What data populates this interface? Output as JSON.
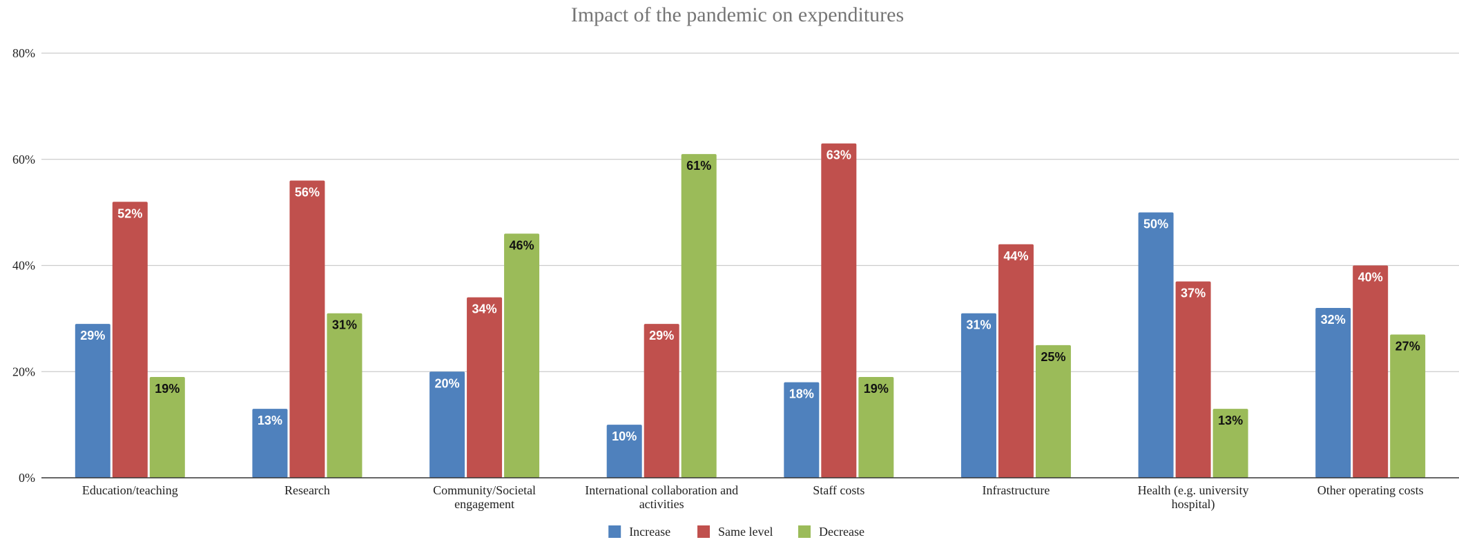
{
  "chart_data": {
    "type": "bar",
    "title": "Impact of the pandemic on expenditures",
    "xlabel": "",
    "ylabel": "",
    "ylim": [
      0,
      80
    ],
    "yticks": [
      0,
      20,
      40,
      60,
      80
    ],
    "ytick_labels": [
      "0%",
      "20%",
      "40%",
      "60%",
      "80%"
    ],
    "grid": true,
    "legend_position": "bottom",
    "categories": [
      [
        "Education/teaching"
      ],
      [
        "Research"
      ],
      [
        "Community/Societal",
        "engagement"
      ],
      [
        "International collaboration and",
        "activities"
      ],
      [
        "Staff costs"
      ],
      [
        "Infrastructure"
      ],
      [
        "Health (e.g. university",
        "hospital)"
      ],
      [
        "Other operating costs"
      ]
    ],
    "series": [
      {
        "name": "Increase",
        "color": "#4f81bd",
        "label_color": "#ffffff",
        "values": [
          29,
          13,
          20,
          10,
          18,
          31,
          50,
          32
        ],
        "labels": [
          "29%",
          "13%",
          "20%",
          "10%",
          "18%",
          "31%",
          "50%",
          "32%"
        ]
      },
      {
        "name": "Same level",
        "color": "#c0504d",
        "label_color": "#ffffff",
        "values": [
          52,
          56,
          34,
          29,
          63,
          44,
          37,
          40
        ],
        "labels": [
          "52%",
          "56%",
          "34%",
          "29%",
          "63%",
          "44%",
          "37%",
          "40%"
        ]
      },
      {
        "name": "Decrease",
        "color": "#9bbb59",
        "label_color": "#111111",
        "values": [
          19,
          31,
          46,
          61,
          19,
          25,
          13,
          27
        ],
        "labels": [
          "19%",
          "31%",
          "46%",
          "61%",
          "19%",
          "25%",
          "13%",
          "27%"
        ]
      }
    ]
  }
}
